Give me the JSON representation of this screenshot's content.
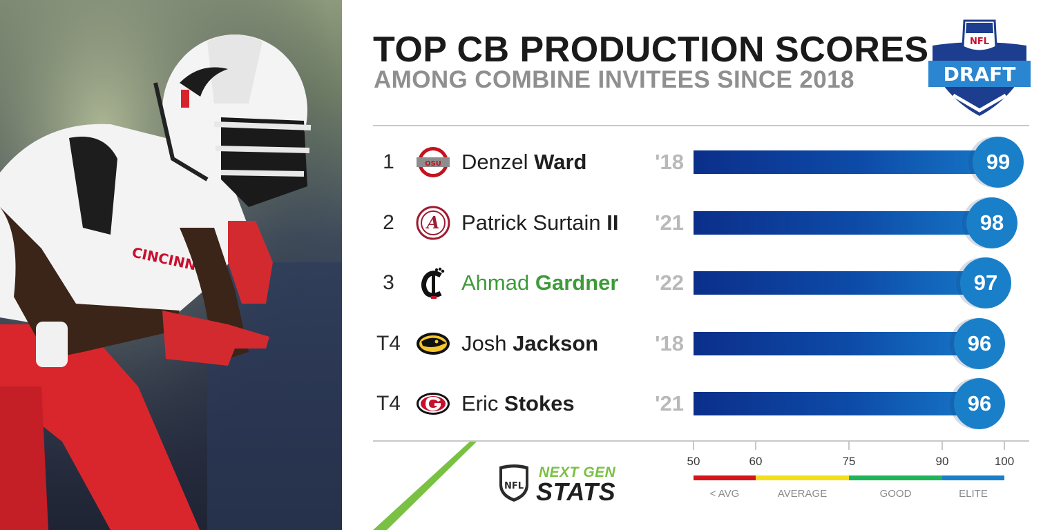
{
  "header": {
    "title": "TOP CB PRODUCTION SCORES",
    "subtitle": "AMONG COMBINE INVITEES SINCE 2018",
    "draft_logo": {
      "league": "NFL",
      "word": "DRAFT"
    }
  },
  "chart_data": {
    "type": "bar",
    "orientation": "horizontal",
    "title": "TOP CB PRODUCTION SCORES",
    "subtitle": "AMONG COMBINE INVITEES SINCE 2018",
    "xlim": [
      50,
      100
    ],
    "ticks": [
      50,
      60,
      75,
      90,
      100
    ],
    "rows": [
      {
        "rank": "1",
        "first": "Denzel",
        "last": "Ward",
        "suffix": "",
        "school_icon": "ohio-state-logo",
        "year": "'18",
        "value": 99,
        "highlight": false
      },
      {
        "rank": "2",
        "first": "Patrick",
        "last": "Surtain",
        "suffix": "II",
        "school_icon": "alabama-logo",
        "year": "'21",
        "value": 98,
        "highlight": false
      },
      {
        "rank": "3",
        "first": "Ahmad",
        "last": "Gardner",
        "suffix": "",
        "school_icon": "cincinnati-logo",
        "year": "'22",
        "value": 97,
        "highlight": true
      },
      {
        "rank": "T4",
        "first": "Josh",
        "last": "Jackson",
        "suffix": "",
        "school_icon": "iowa-logo",
        "year": "'18",
        "value": 96,
        "highlight": false
      },
      {
        "rank": "T4",
        "first": "Eric",
        "last": "Stokes",
        "suffix": "",
        "school_icon": "georgia-logo",
        "year": "'21",
        "value": 96,
        "highlight": false
      }
    ],
    "tiers": [
      {
        "label": "< AVG",
        "from": 50,
        "to": 60,
        "color": "#d7141a"
      },
      {
        "label": "AVERAGE",
        "from": 60,
        "to": 75,
        "color": "#f2df19"
      },
      {
        "label": "GOOD",
        "from": 75,
        "to": 90,
        "color": "#1fb35a"
      },
      {
        "label": "ELITE",
        "from": 90,
        "to": 100,
        "color": "#1a7fc9"
      }
    ]
  },
  "branding": {
    "ngs_top": "NEXT GEN",
    "ngs_bottom": "STATS",
    "shield_text": "NFL"
  },
  "colors": {
    "bar_dark": "#0b2f8a",
    "bar_light": "#1677c7",
    "badge": "#1a7fc9",
    "highlight_text": "#3d9b3a",
    "accent_green": "#7ac143"
  }
}
